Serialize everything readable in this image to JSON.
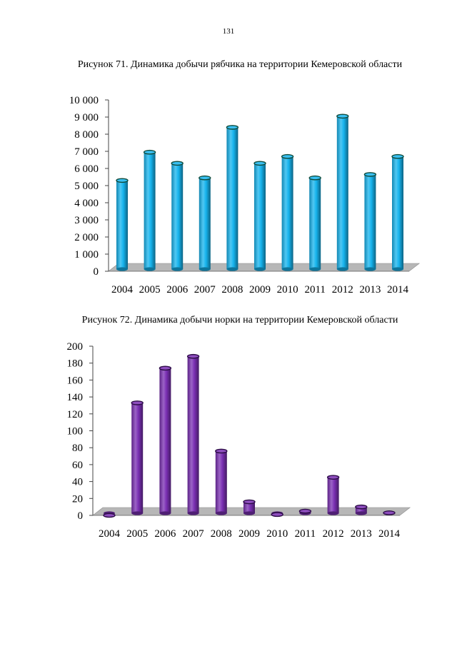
{
  "page": {
    "number": "131"
  },
  "captions": {
    "figure71": "Рисунок 71. Динамика добычи рябчика на территории Кемеровской области",
    "figure72": "Рисунок 72. Динамика добычи норки на территории Кемеровской области"
  },
  "chart_data": [
    {
      "type": "bar",
      "id": "figure71",
      "title": "Рисунок 71. Динамика добычи рябчика на территории Кемеровской области",
      "categories": [
        "2004",
        "2005",
        "2006",
        "2007",
        "2008",
        "2009",
        "2010",
        "2011",
        "2012",
        "2013",
        "2014"
      ],
      "values": [
        5300,
        6950,
        6300,
        5450,
        8400,
        6300,
        6700,
        5450,
        9050,
        5650,
        6700
      ],
      "ylim": [
        0,
        10000
      ],
      "yticks": [
        0,
        1000,
        2000,
        3000,
        4000,
        5000,
        6000,
        7000,
        8000,
        9000,
        10000
      ],
      "ytick_labels": [
        "0",
        "1 000",
        "2 000",
        "3 000",
        "4 000",
        "5 000",
        "6 000",
        "7 000",
        "8 000",
        "9 000",
        "10 000"
      ],
      "xlabel": "",
      "ylabel": "",
      "bar_color": "#16b4ee",
      "bar_edge_color": "#0f4a3a"
    },
    {
      "type": "bar",
      "id": "figure72",
      "title": "Рисунок 72. Динамика добычи норки на территории Кемеровской области",
      "categories": [
        "2004",
        "2005",
        "2006",
        "2007",
        "2008",
        "2009",
        "2010",
        "2011",
        "2012",
        "2013",
        "2014"
      ],
      "values": [
        0,
        133,
        174,
        188,
        76,
        16,
        1,
        5,
        45,
        10,
        3
      ],
      "ylim": [
        0,
        200
      ],
      "yticks": [
        0,
        20,
        40,
        60,
        80,
        100,
        120,
        140,
        160,
        180,
        200
      ],
      "ytick_labels": [
        "0",
        "20",
        "40",
        "60",
        "80",
        "100",
        "120",
        "140",
        "160",
        "180",
        "200"
      ],
      "xlabel": "",
      "ylabel": "",
      "bar_color": "#7a2fb3",
      "bar_edge_color": "#2b0b45"
    }
  ]
}
